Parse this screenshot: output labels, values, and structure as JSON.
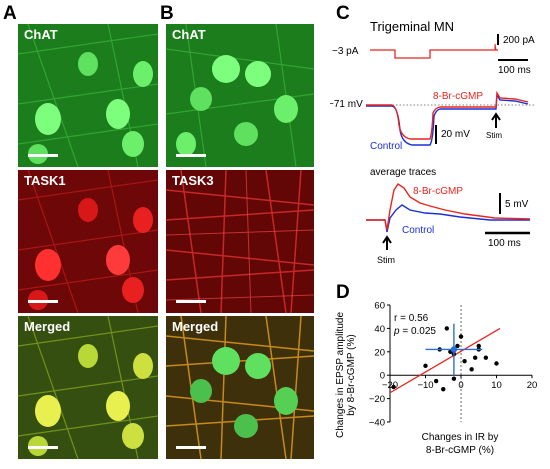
{
  "panels": {
    "A": "A",
    "B": "B",
    "C": "C",
    "D": "D"
  },
  "micrographs": {
    "A_top": "ChAT",
    "A_mid": "TASK1",
    "A_bot": "Merged",
    "B_top": "ChAT",
    "B_mid": "TASK3",
    "B_bot": "Merged"
  },
  "panel_c": {
    "title": "Trigeminal MN",
    "current_label": "−3 pA",
    "current_scale": "200 pA",
    "time_scale_top": "100 ms",
    "vm_label": "−71 mV",
    "drug_label": "8-Br-cGMP",
    "control_label": "Control",
    "voltage_scale": "20 mV",
    "stim_label": "Stim",
    "avg_title": "average traces",
    "avg_drug_label": "8-Br-cGMP",
    "avg_control_label": "Control",
    "avg_voltage_scale": "5 mV",
    "avg_time_scale": "100 ms",
    "avg_stim_label": "Stim",
    "colors": {
      "drug": "#e8251f",
      "control": "#1a2fd6",
      "command": "#e8251f"
    }
  },
  "chart_data": {
    "type": "scatter",
    "xlabel": "Changes in IR by 8-Br-cGMP (%)",
    "ylabel": "Changes in EPSP amplitude by 8-Br-cGMP (%)",
    "xlim": [
      -20,
      20
    ],
    "ylim": [
      -40,
      60
    ],
    "xticks": [
      "-20",
      "-10",
      "0",
      "10",
      "20"
    ],
    "yticks": [
      "-40",
      "-20",
      "0",
      "20",
      "40",
      "60"
    ],
    "stats": {
      "r": "r = 0.56",
      "p_symbol": "p",
      "p_value": " = 0.025"
    },
    "points": [
      [
        -19,
        -10
      ],
      [
        -10,
        8
      ],
      [
        -7,
        -5
      ],
      [
        -5,
        -12
      ],
      [
        -4,
        40
      ],
      [
        -3,
        20
      ],
      [
        -2,
        18
      ],
      [
        -1,
        25
      ],
      [
        1,
        12
      ],
      [
        3,
        5
      ],
      [
        4,
        15
      ],
      [
        5,
        22
      ],
      [
        5,
        25
      ],
      [
        7,
        15
      ],
      [
        10,
        10
      ],
      [
        -6,
        22
      ],
      [
        0,
        33
      ],
      [
        -2,
        -3
      ]
    ],
    "mean": {
      "x": -2,
      "y": 22,
      "x_err": 8,
      "y_err": 22
    },
    "regression": {
      "x": [
        -20,
        11
      ],
      "y": [
        -15,
        40
      ]
    },
    "colors": {
      "points": "#000000",
      "mean": "#2b6fd8",
      "regression": "#e8251f"
    }
  }
}
